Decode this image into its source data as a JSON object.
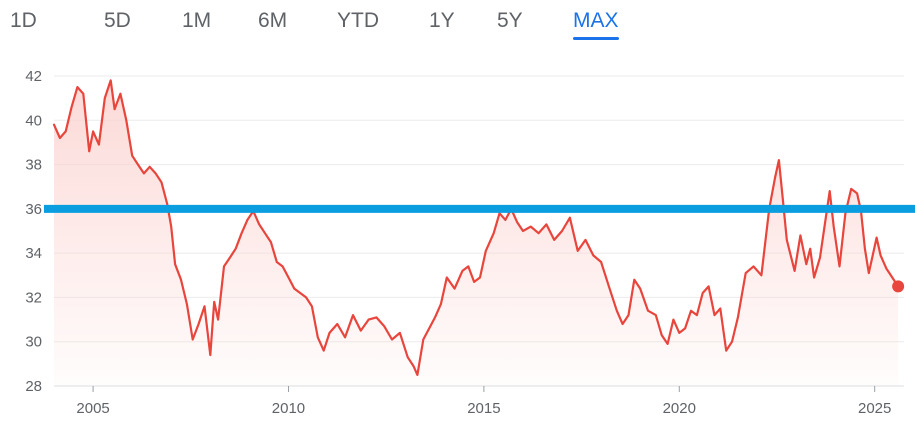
{
  "range_tabs": {
    "items": [
      {
        "id": "1d",
        "label": "1D"
      },
      {
        "id": "5d",
        "label": "5D"
      },
      {
        "id": "1m",
        "label": "1M"
      },
      {
        "id": "6m",
        "label": "6M"
      },
      {
        "id": "ytd",
        "label": "YTD"
      },
      {
        "id": "1y",
        "label": "1Y"
      },
      {
        "id": "5y",
        "label": "5Y"
      },
      {
        "id": "max",
        "label": "MAX"
      }
    ],
    "active": "max"
  },
  "colors": {
    "line": "#e8453c",
    "area_fill": "#fbd3d0",
    "reference_line": "#0a9ee0",
    "tab_active": "#1a73e8",
    "tab_inactive": "#5f6368",
    "gridline": "#ebebeb",
    "axis_label": "#5f6368"
  },
  "chart_data": {
    "type": "area",
    "title": "",
    "xlabel": "",
    "ylabel": "",
    "xlim": [
      2004.0,
      2025.75
    ],
    "ylim": [
      28,
      42
    ],
    "x_ticks": [
      2005,
      2010,
      2015,
      2020,
      2025
    ],
    "x_tick_labels": [
      "2005",
      "2010",
      "2015",
      "2020",
      "2025"
    ],
    "y_ticks": [
      28,
      30,
      32,
      34,
      36,
      38,
      40,
      42
    ],
    "y_tick_labels": [
      "28",
      "30",
      "32",
      "34",
      "36",
      "38",
      "40",
      "42"
    ],
    "grid": "horizontal",
    "legend": "none",
    "reference_line": {
      "y": 36
    },
    "series": [
      {
        "x": [
          2004.0,
          2004.15,
          2004.3,
          2004.45,
          2004.6,
          2004.75,
          2004.9,
          2005.0,
          2005.15,
          2005.3,
          2005.45,
          2005.55,
          2005.7,
          2005.85,
          2006.0,
          2006.15,
          2006.3,
          2006.45,
          2006.6,
          2006.75,
          2006.9,
          2007.0,
          2007.1,
          2007.25,
          2007.4,
          2007.55,
          2007.7,
          2007.85,
          2008.0,
          2008.1,
          2008.2,
          2008.35,
          2008.5,
          2008.65,
          2008.8,
          2008.95,
          2009.1,
          2009.25,
          2009.4,
          2009.55,
          2009.7,
          2009.85,
          2010.0,
          2010.15,
          2010.3,
          2010.45,
          2010.6,
          2010.75,
          2010.9,
          2011.05,
          2011.25,
          2011.45,
          2011.65,
          2011.85,
          2012.05,
          2012.25,
          2012.45,
          2012.65,
          2012.85,
          2013.05,
          2013.2,
          2013.3,
          2013.45,
          2013.6,
          2013.75,
          2013.9,
          2014.05,
          2014.25,
          2014.45,
          2014.6,
          2014.75,
          2014.9,
          2015.05,
          2015.25,
          2015.4,
          2015.55,
          2015.7,
          2015.85,
          2016.0,
          2016.2,
          2016.4,
          2016.6,
          2016.8,
          2017.0,
          2017.2,
          2017.4,
          2017.6,
          2017.8,
          2018.0,
          2018.2,
          2018.4,
          2018.55,
          2018.7,
          2018.85,
          2019.0,
          2019.2,
          2019.4,
          2019.55,
          2019.7,
          2019.85,
          2020.0,
          2020.15,
          2020.3,
          2020.45,
          2020.6,
          2020.75,
          2020.9,
          2021.05,
          2021.2,
          2021.35,
          2021.5,
          2021.7,
          2021.9,
          2022.1,
          2022.3,
          2022.45,
          2022.55,
          2022.65,
          2022.75,
          2022.85,
          2022.95,
          2023.1,
          2023.25,
          2023.35,
          2023.45,
          2023.6,
          2023.75,
          2023.85,
          2023.95,
          2024.1,
          2024.25,
          2024.4,
          2024.55,
          2024.65,
          2024.75,
          2024.85,
          2024.95,
          2025.05,
          2025.15,
          2025.3,
          2025.45,
          2025.6
        ],
        "values": [
          39.8,
          39.2,
          39.5,
          40.6,
          41.5,
          41.2,
          38.6,
          39.5,
          38.9,
          41.0,
          41.8,
          40.5,
          41.2,
          40.0,
          38.4,
          38.0,
          37.6,
          37.9,
          37.6,
          37.2,
          36.2,
          35.2,
          33.5,
          32.8,
          31.7,
          30.1,
          30.8,
          31.6,
          29.4,
          31.8,
          31.0,
          33.4,
          33.8,
          34.2,
          34.9,
          35.5,
          35.9,
          35.3,
          34.9,
          34.5,
          33.6,
          33.4,
          32.9,
          32.4,
          32.2,
          32.0,
          31.6,
          30.2,
          29.6,
          30.4,
          30.8,
          30.2,
          31.2,
          30.5,
          31.0,
          31.1,
          30.7,
          30.1,
          30.4,
          29.3,
          28.9,
          28.5,
          30.1,
          30.6,
          31.1,
          31.7,
          32.9,
          32.4,
          33.2,
          33.4,
          32.7,
          32.9,
          34.1,
          34.9,
          35.8,
          35.5,
          36.0,
          35.4,
          35.0,
          35.2,
          34.9,
          35.3,
          34.6,
          35.0,
          35.6,
          34.1,
          34.6,
          33.9,
          33.6,
          32.5,
          31.4,
          30.8,
          31.2,
          32.8,
          32.4,
          31.4,
          31.2,
          30.3,
          29.9,
          31.0,
          30.4,
          30.6,
          31.4,
          31.2,
          32.2,
          32.5,
          31.2,
          31.5,
          29.6,
          30.0,
          31.1,
          33.1,
          33.4,
          33.0,
          36.0,
          37.4,
          38.2,
          36.4,
          34.6,
          33.9,
          33.2,
          34.8,
          33.5,
          34.2,
          32.9,
          33.8,
          35.6,
          36.8,
          35.2,
          33.4,
          35.8,
          36.9,
          36.7,
          35.9,
          34.2,
          33.1,
          33.9,
          34.7,
          33.9,
          33.3,
          32.9,
          32.5
        ]
      }
    ]
  }
}
